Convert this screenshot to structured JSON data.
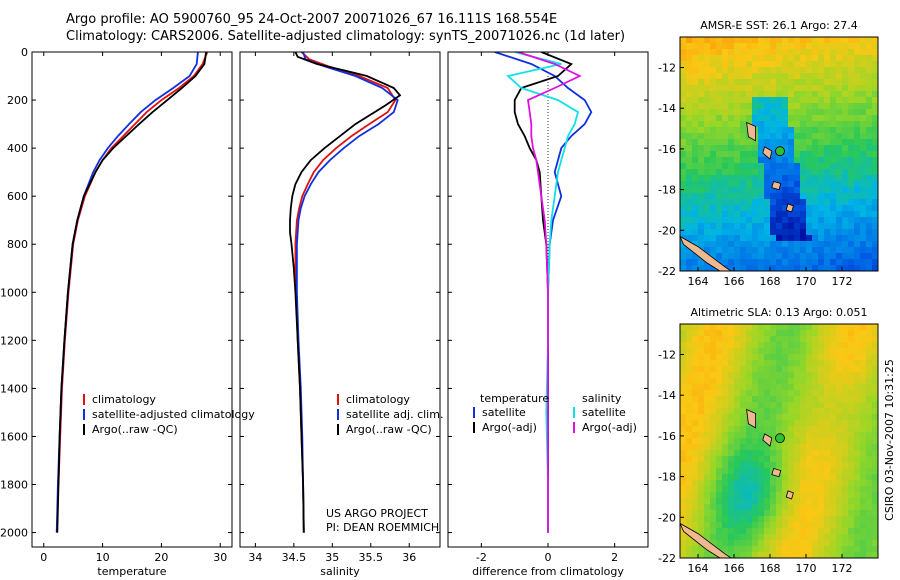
{
  "header": {
    "line1": "Argo profile: AO 5900760_95 24-Oct-2007 20071026_67 16.111S 168.554E",
    "line2": "Climatology: CARS2006. Satellite-adjusted climatology: synTS_20071026.nc (1d later)"
  },
  "credits": {
    "project": "US ARGO PROJECT",
    "pi": "PI: DEAN ROEMMICH",
    "stamp": "CSIRO 03-Nov-2007 10:31:25"
  },
  "colors": {
    "climatology": "#e01010",
    "satellite": "#1030e0",
    "argo": "#000000",
    "sat_salinity": "#10e0e8",
    "argo_salinity": "#e010e0"
  },
  "chart_data": [
    {
      "id": "temperature",
      "type": "line",
      "xlabel": "temperature",
      "ylabel": "",
      "xlim": [
        -2,
        32
      ],
      "ylim": [
        2060,
        0
      ],
      "xticks": [
        0,
        10,
        20,
        30
      ],
      "xtick_labels": [
        "0",
        "10",
        "20",
        "30"
      ],
      "yticks": [
        0,
        200,
        400,
        600,
        800,
        1000,
        1200,
        1400,
        1600,
        1800,
        2000
      ],
      "ytick_labels": [
        "0",
        "200",
        "400",
        "600",
        "800",
        "1000",
        "1200",
        "1400",
        "1600",
        "1800",
        "2000"
      ],
      "legend": [
        "climatology",
        "satellite-adjusted climatology",
        "Argo(..raw -QC)"
      ],
      "legend_position": "bottom-right",
      "series": [
        {
          "name": "climatology",
          "color": "#e01010",
          "depth": [
            0,
            50,
            100,
            150,
            200,
            250,
            300,
            350,
            400,
            450,
            500,
            600,
            700,
            800,
            1000,
            1200,
            1400,
            1600,
            1800
          ],
          "values": [
            27.8,
            27.0,
            25.5,
            23.0,
            20.0,
            17.5,
            15.5,
            13.5,
            11.5,
            10.0,
            8.8,
            7.0,
            5.8,
            5.0,
            4.2,
            3.6,
            3.1,
            2.8,
            2.5
          ]
        },
        {
          "name": "satellite-adjusted climatology",
          "color": "#1030e0",
          "depth": [
            0,
            50,
            100,
            150,
            200,
            250,
            300,
            350,
            400,
            450,
            500,
            600,
            700,
            800,
            1000,
            1200,
            1400,
            1600,
            1800,
            2000
          ],
          "values": [
            26.2,
            26.0,
            24.8,
            22.0,
            19.0,
            16.5,
            14.5,
            12.6,
            10.9,
            9.5,
            8.4,
            6.8,
            5.7,
            4.9,
            4.1,
            3.5,
            3.0,
            2.7,
            2.4,
            2.2
          ]
        },
        {
          "name": "Argo(..raw -QC)",
          "color": "#000000",
          "depth": [
            0,
            50,
            100,
            150,
            200,
            250,
            300,
            350,
            400,
            450,
            500,
            600,
            700,
            800,
            1000,
            1200,
            1400,
            1600,
            1800,
            2000
          ],
          "values": [
            27.6,
            27.3,
            25.8,
            23.5,
            21.0,
            18.5,
            16.2,
            14.0,
            11.8,
            10.0,
            8.8,
            6.8,
            5.7,
            4.9,
            4.1,
            3.5,
            3.0,
            2.7,
            2.5,
            2.3
          ]
        }
      ]
    },
    {
      "id": "salinity",
      "type": "line",
      "xlabel": "salinity",
      "xlim": [
        33.8,
        36.4
      ],
      "ylim": [
        2060,
        0
      ],
      "xticks": [
        34,
        34.5,
        35,
        35.5,
        36
      ],
      "xtick_labels": [
        "34",
        "34.5",
        "35",
        "35.5",
        "36"
      ],
      "legend": [
        "climatology",
        "satellite adj. clim.",
        "Argo(..raw -QC)"
      ],
      "legend_position": "bottom-right",
      "series": [
        {
          "name": "climatology",
          "color": "#e01010",
          "depth": [
            0,
            30,
            60,
            100,
            150,
            200,
            250,
            300,
            350,
            400,
            450,
            500,
            550,
            600,
            650,
            700,
            800,
            900,
            1000,
            1200,
            1400,
            1600,
            1800,
            2000
          ],
          "values": [
            34.6,
            34.7,
            34.95,
            35.35,
            35.72,
            35.82,
            35.72,
            35.48,
            35.25,
            35.05,
            34.88,
            34.76,
            34.68,
            34.61,
            34.57,
            34.54,
            34.52,
            34.52,
            34.53,
            34.55,
            34.58,
            34.6,
            34.62,
            34.63
          ]
        },
        {
          "name": "satellite adj. clim.",
          "color": "#1030e0",
          "depth": [
            0,
            30,
            60,
            100,
            150,
            200,
            250,
            300,
            350,
            400,
            450,
            500,
            550,
            600,
            650,
            700,
            800,
            900,
            1000,
            1200,
            1400,
            1600,
            1800,
            2000
          ],
          "values": [
            34.62,
            34.65,
            34.9,
            35.3,
            35.65,
            35.85,
            35.8,
            35.6,
            35.35,
            35.15,
            34.97,
            34.82,
            34.72,
            34.64,
            34.59,
            34.56,
            34.54,
            34.54,
            34.54,
            34.56,
            34.59,
            34.61,
            34.62,
            34.63
          ]
        },
        {
          "name": "Argo(..raw -QC)",
          "color": "#000000",
          "depth": [
            0,
            20,
            50,
            80,
            100,
            150,
            180,
            220,
            260,
            300,
            350,
            400,
            450,
            500,
            550,
            600,
            650,
            700,
            750,
            800,
            900,
            1000,
            1200,
            1400,
            1600,
            1800,
            2000
          ],
          "values": [
            34.52,
            34.55,
            34.8,
            35.2,
            35.45,
            35.8,
            35.88,
            35.7,
            35.5,
            35.3,
            35.1,
            34.9,
            34.72,
            34.6,
            34.52,
            34.48,
            34.46,
            34.45,
            34.45,
            34.47,
            34.5,
            34.52,
            34.55,
            34.58,
            34.6,
            34.62,
            34.63
          ]
        }
      ]
    },
    {
      "id": "difference",
      "type": "line",
      "xlabel": "difference from climatology",
      "xlim": [
        -3,
        3
      ],
      "ylim": [
        2060,
        0
      ],
      "xticks": [
        -2,
        0,
        2
      ],
      "xtick_labels": [
        "-2",
        "0",
        "2"
      ],
      "legend_headers": [
        "temperature",
        "salinity"
      ],
      "legend": [
        "satellite",
        "Argo(-adj)",
        "satellite",
        "Argo(-adj)"
      ],
      "legend_position": "bottom",
      "series": [
        {
          "name": "temperature satellite",
          "color": "#1030e0",
          "depth": [
            0,
            50,
            100,
            150,
            200,
            250,
            300,
            350,
            400,
            450,
            500,
            550,
            600,
            700,
            800,
            1000,
            1200,
            1500,
            2000
          ],
          "values": [
            -1.6,
            -0.5,
            0.2,
            0.6,
            1.1,
            1.3,
            1.1,
            0.7,
            0.4,
            0.3,
            0.2,
            0.3,
            0.4,
            0.15,
            0.05,
            0.0,
            0.0,
            0.0,
            0.0
          ]
        },
        {
          "name": "temperature Argo(-adj)",
          "color": "#000000",
          "depth": [
            0,
            50,
            100,
            150,
            200,
            250,
            300,
            350,
            400,
            450,
            500,
            600,
            700,
            800,
            1000,
            1200,
            1500,
            2000
          ],
          "values": [
            -0.2,
            0.7,
            0.3,
            -0.8,
            -1.0,
            -1.0,
            -0.9,
            -0.7,
            -0.55,
            -0.35,
            -0.25,
            -0.2,
            -0.15,
            -0.05,
            0.0,
            0.0,
            0.0,
            0.0
          ]
        },
        {
          "name": "salinity satellite",
          "color": "#10e0e8",
          "depth": [
            0,
            50,
            100,
            150,
            200,
            250,
            300,
            350,
            400,
            450,
            500,
            600,
            700,
            800,
            1000,
            1200,
            1500,
            1800,
            2000
          ],
          "values": [
            -1.0,
            0.4,
            -1.2,
            -0.8,
            0.3,
            0.9,
            0.8,
            0.6,
            0.5,
            0.4,
            0.3,
            0.2,
            0.1,
            0.05,
            0.0,
            0.0,
            -0.05,
            0.0,
            0.0
          ]
        },
        {
          "name": "salinity Argo(-adj)",
          "color": "#e010e0",
          "depth": [
            0,
            50,
            100,
            150,
            200,
            250,
            300,
            350,
            400,
            450,
            500,
            600,
            700,
            800,
            1000,
            1200,
            1500,
            2000
          ],
          "values": [
            -0.9,
            0.2,
            0.95,
            0.2,
            -0.6,
            -0.55,
            -0.5,
            -0.5,
            -0.45,
            -0.35,
            -0.3,
            -0.2,
            -0.1,
            -0.05,
            0.0,
            0.0,
            0.0,
            0.0
          ]
        }
      ]
    },
    {
      "id": "sst_map",
      "type": "heatmap",
      "title": "AMSR-E SST: 26.1 Argo: 27.4",
      "xticks": [
        164,
        166,
        168,
        170,
        172
      ],
      "xtick_labels": [
        "164",
        "166",
        "168",
        "170",
        "172"
      ],
      "yticks": [
        -12,
        -14,
        -16,
        -18,
        -20,
        -22
      ],
      "ytick_labels": [
        "-12",
        "-14",
        "-16",
        "-18",
        "-20",
        "-22"
      ],
      "xlim": [
        163,
        174
      ],
      "ylim": [
        -22,
        -10.5
      ],
      "argo_position": {
        "lon": 168.554,
        "lat": -16.111
      },
      "sst_value": 26.1,
      "argo_value": 27.4
    },
    {
      "id": "sla_map",
      "type": "heatmap",
      "title": "Altimetric SLA: 0.13 Argo: 0.051",
      "xticks": [
        164,
        166,
        168,
        170,
        172
      ],
      "xtick_labels": [
        "164",
        "166",
        "168",
        "170",
        "172"
      ],
      "yticks": [
        -12,
        -14,
        -16,
        -18,
        -20,
        -22
      ],
      "ytick_labels": [
        "-12",
        "-14",
        "-16",
        "-18",
        "-20",
        "-22"
      ],
      "xlim": [
        163,
        174
      ],
      "ylim": [
        -22,
        -10.5
      ],
      "argo_position": {
        "lon": 168.554,
        "lat": -16.111
      },
      "sla_value": 0.13,
      "argo_value": 0.051
    }
  ]
}
